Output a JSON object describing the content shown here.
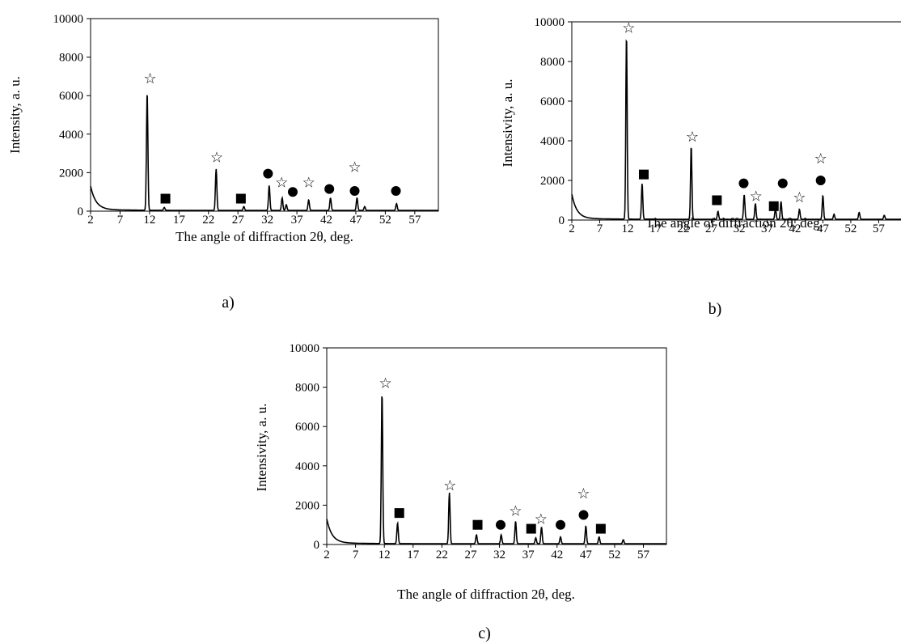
{
  "panels": [
    {
      "caption": "a)",
      "chart_data": {
        "type": "line",
        "xlabel": "The angle of diffraction 2θ, deg.",
        "ylabel": "Intensity, a. u.",
        "xlim": [
          2,
          61
        ],
        "ylim": [
          0,
          10000
        ],
        "xticks": [
          "2",
          "7",
          "12",
          "17",
          "22",
          "27",
          "32",
          "37",
          "42",
          "47",
          "52",
          "57"
        ],
        "yticks": [
          "0",
          "2000",
          "4000",
          "6000",
          "8000",
          "10000"
        ],
        "grid": false,
        "peaks": [
          {
            "x": 11.6,
            "y": 6150
          },
          {
            "x": 14.5,
            "y": 150
          },
          {
            "x": 23.3,
            "y": 2150
          },
          {
            "x": 28.0,
            "y": 200
          },
          {
            "x": 32.3,
            "y": 1300
          },
          {
            "x": 34.5,
            "y": 650
          },
          {
            "x": 35.2,
            "y": 300
          },
          {
            "x": 39.0,
            "y": 550
          },
          {
            "x": 42.7,
            "y": 650
          },
          {
            "x": 47.2,
            "y": 650
          },
          {
            "x": 48.5,
            "y": 200
          },
          {
            "x": 53.9,
            "y": 350
          }
        ],
        "markers": [
          {
            "symbol": "star",
            "x": 12.1,
            "y": 6900
          },
          {
            "symbol": "square",
            "x": 14.7,
            "y": 650
          },
          {
            "symbol": "star",
            "x": 23.4,
            "y": 2800
          },
          {
            "symbol": "square",
            "x": 27.5,
            "y": 650
          },
          {
            "symbol": "circle",
            "x": 32.1,
            "y": 1950
          },
          {
            "symbol": "star",
            "x": 34.4,
            "y": 1500
          },
          {
            "symbol": "circle",
            "x": 36.3,
            "y": 1000
          },
          {
            "symbol": "star",
            "x": 39.0,
            "y": 1500
          },
          {
            "symbol": "circle",
            "x": 42.5,
            "y": 1150
          },
          {
            "symbol": "star",
            "x": 46.8,
            "y": 2300
          },
          {
            "symbol": "circle",
            "x": 46.8,
            "y": 1050
          },
          {
            "symbol": "circle",
            "x": 53.8,
            "y": 1050
          }
        ]
      }
    },
    {
      "caption": "b)",
      "chart_data": {
        "type": "line",
        "xlabel": "The angle of diffraction 2θ, deg.",
        "ylabel": "Intensivity, a. u.",
        "xlim": [
          2,
          61
        ],
        "ylim": [
          0,
          10000
        ],
        "xticks": [
          "2",
          "7",
          "12",
          "17",
          "22",
          "27",
          "32",
          "37",
          "42",
          "47",
          "52",
          "57"
        ],
        "yticks": [
          "0",
          "2000",
          "4000",
          "6000",
          "8000",
          "10000"
        ],
        "grid": false,
        "peaks": [
          {
            "x": 11.8,
            "y": 9300
          },
          {
            "x": 14.6,
            "y": 1800
          },
          {
            "x": 23.4,
            "y": 3700
          },
          {
            "x": 28.2,
            "y": 400
          },
          {
            "x": 32.9,
            "y": 1250
          },
          {
            "x": 34.9,
            "y": 800
          },
          {
            "x": 38.5,
            "y": 550
          },
          {
            "x": 39.5,
            "y": 900
          },
          {
            "x": 42.8,
            "y": 500
          },
          {
            "x": 47.0,
            "y": 1200
          },
          {
            "x": 49.0,
            "y": 250
          },
          {
            "x": 53.5,
            "y": 350
          },
          {
            "x": 58.0,
            "y": 200
          }
        ],
        "markers": [
          {
            "symbol": "star",
            "x": 12.2,
            "y": 9700
          },
          {
            "symbol": "square",
            "x": 14.9,
            "y": 2300
          },
          {
            "symbol": "star",
            "x": 23.6,
            "y": 4200
          },
          {
            "symbol": "square",
            "x": 28.0,
            "y": 1000
          },
          {
            "symbol": "circle",
            "x": 32.8,
            "y": 1850
          },
          {
            "symbol": "star",
            "x": 35.0,
            "y": 1200
          },
          {
            "symbol": "square",
            "x": 38.2,
            "y": 700
          },
          {
            "symbol": "circle",
            "x": 39.8,
            "y": 1850
          },
          {
            "symbol": "star",
            "x": 42.8,
            "y": 1150
          },
          {
            "symbol": "star",
            "x": 46.6,
            "y": 3100
          },
          {
            "symbol": "circle",
            "x": 46.6,
            "y": 2000
          }
        ]
      }
    },
    {
      "caption": "c)",
      "chart_data": {
        "type": "line",
        "xlabel": "The angle of diffraction 2θ, deg.",
        "ylabel": "Intensivity, a. u.",
        "xlim": [
          2,
          61
        ],
        "ylim": [
          0,
          10000
        ],
        "xticks": [
          "2",
          "7",
          "12",
          "17",
          "22",
          "27",
          "32",
          "37",
          "42",
          "47",
          "52",
          "57"
        ],
        "yticks": [
          "0",
          "2000",
          "4000",
          "6000",
          "8000",
          "10000"
        ],
        "grid": false,
        "peaks": [
          {
            "x": 11.6,
            "y": 7700
          },
          {
            "x": 14.3,
            "y": 1050
          },
          {
            "x": 23.3,
            "y": 2600
          },
          {
            "x": 28.0,
            "y": 450
          },
          {
            "x": 32.3,
            "y": 450
          },
          {
            "x": 34.8,
            "y": 1150
          },
          {
            "x": 38.3,
            "y": 300
          },
          {
            "x": 39.3,
            "y": 850
          },
          {
            "x": 42.6,
            "y": 350
          },
          {
            "x": 47.0,
            "y": 900
          },
          {
            "x": 49.3,
            "y": 350
          },
          {
            "x": 53.5,
            "y": 200
          }
        ],
        "markers": [
          {
            "symbol": "star",
            "x": 12.2,
            "y": 8200
          },
          {
            "symbol": "square",
            "x": 14.6,
            "y": 1600
          },
          {
            "symbol": "star",
            "x": 23.4,
            "y": 3000
          },
          {
            "symbol": "square",
            "x": 28.2,
            "y": 1000
          },
          {
            "symbol": "circle",
            "x": 32.2,
            "y": 1000
          },
          {
            "symbol": "star",
            "x": 34.8,
            "y": 1700
          },
          {
            "symbol": "square",
            "x": 37.5,
            "y": 800
          },
          {
            "symbol": "star",
            "x": 39.2,
            "y": 1300
          },
          {
            "symbol": "circle",
            "x": 42.6,
            "y": 1000
          },
          {
            "symbol": "star",
            "x": 46.6,
            "y": 2600
          },
          {
            "symbol": "circle",
            "x": 46.6,
            "y": 1500
          },
          {
            "symbol": "square",
            "x": 49.6,
            "y": 800
          }
        ]
      }
    }
  ]
}
